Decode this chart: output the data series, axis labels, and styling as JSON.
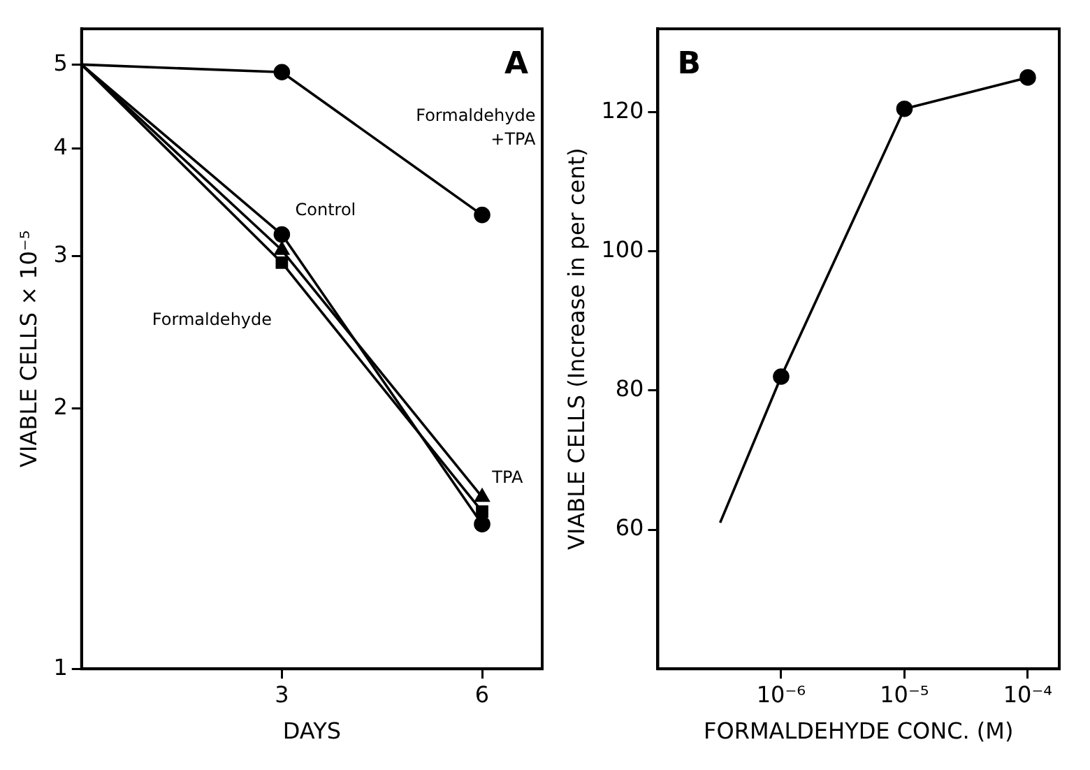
{
  "chart_data": [
    {
      "type": "line",
      "xlabel": "DAYS",
      "ylabel": "VIABLE CELLS × 10⁻⁵",
      "log": "y",
      "xlim": [
        0,
        6.9
      ],
      "xticks": [
        3,
        6
      ],
      "ylim": [
        1,
        5.5
      ],
      "yticks": [
        1,
        2,
        3,
        4,
        5
      ],
      "grid": false,
      "legend": false,
      "annotations": [
        "A"
      ],
      "series": [
        {
          "name": "Formaldehyde +TPA",
          "color": "#000000",
          "marker": "circle",
          "x": [
            0,
            3,
            6
          ],
          "values": [
            5,
            4.9,
            3.35
          ]
        },
        {
          "name": "Control",
          "color": "#000000",
          "marker": "circle",
          "x": [
            0,
            3,
            6
          ],
          "values": [
            5,
            3.18,
            1.47
          ]
        },
        {
          "name": "TPA",
          "color": "#000000",
          "marker": "triangle",
          "x": [
            0,
            3,
            6
          ],
          "values": [
            5,
            3.05,
            1.58
          ]
        },
        {
          "name": "Formaldehyde",
          "color": "#000000",
          "marker": "square",
          "x": [
            0,
            3,
            6
          ],
          "values": [
            5,
            2.95,
            1.52
          ]
        }
      ]
    },
    {
      "type": "line",
      "xlabel": "FORMALDEHYDE CONC. (M)",
      "ylabel": "VIABLE CELLS (Increase in per cent)",
      "log": "x",
      "xlim": [
        1e-07,
        0.00018
      ],
      "xticks": [
        {
          "value": 1e-06,
          "label": "10⁻⁶"
        },
        {
          "value": 1e-05,
          "label": "10⁻⁵"
        },
        {
          "value": 0.0001,
          "label": "10⁻⁴"
        }
      ],
      "ylim": [
        40,
        132
      ],
      "yticks": [
        60,
        80,
        100,
        120
      ],
      "grid": false,
      "legend": false,
      "annotations": [
        "B"
      ],
      "series": [
        {
          "color": "#000000",
          "x": [
            3.2e-07,
            1e-06
          ],
          "values": [
            61,
            82
          ]
        },
        {
          "color": "#000000",
          "marker": "circle",
          "x": [
            1e-06,
            1e-05,
            0.0001
          ],
          "values": [
            82,
            120.5,
            125
          ]
        }
      ]
    }
  ]
}
